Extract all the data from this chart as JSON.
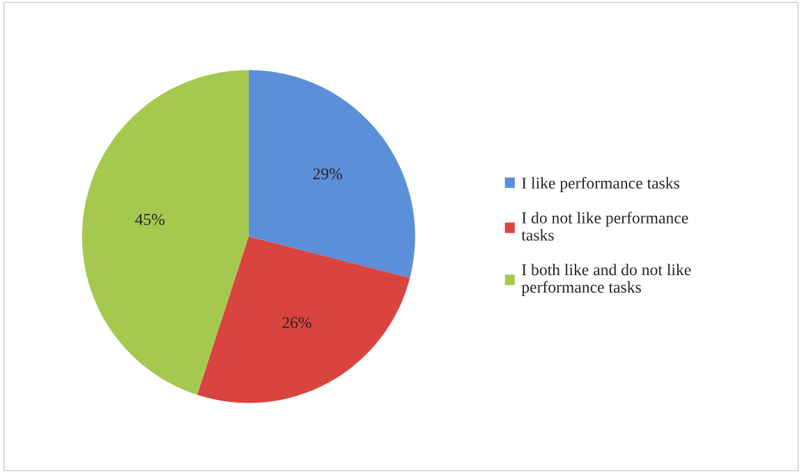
{
  "chart_data": {
    "type": "pie",
    "categories": [
      "I like performance tasks",
      "I do not like performance tasks",
      "I both like and do not like performance tasks"
    ],
    "values": [
      29,
      26,
      45
    ],
    "value_labels": [
      "29%",
      "26%",
      "45%"
    ],
    "colors": [
      "#5b8fd9",
      "#d9443f",
      "#a5c94f"
    ],
    "legend": "right"
  }
}
